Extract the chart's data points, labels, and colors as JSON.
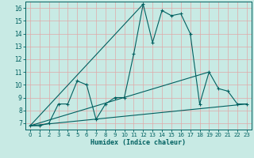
{
  "title": "",
  "xlabel": "Humidex (Indice chaleur)",
  "ylabel": "",
  "bg_color": "#c8eae4",
  "grid_color": "#e0a8a8",
  "line_color": "#006060",
  "xlim": [
    -0.5,
    23.5
  ],
  "ylim": [
    6.5,
    16.5
  ],
  "xticks": [
    0,
    1,
    2,
    3,
    4,
    5,
    6,
    7,
    8,
    9,
    10,
    11,
    12,
    13,
    14,
    15,
    16,
    17,
    18,
    19,
    20,
    21,
    22,
    23
  ],
  "yticks": [
    7,
    8,
    9,
    10,
    11,
    12,
    13,
    14,
    15,
    16
  ],
  "main_x": [
    0,
    1,
    2,
    3,
    4,
    5,
    6,
    7,
    8,
    9,
    10,
    11,
    12,
    13,
    14,
    15,
    16,
    17,
    18,
    19,
    20,
    21,
    22,
    23
  ],
  "main_y": [
    6.8,
    6.8,
    7.0,
    8.5,
    8.5,
    10.3,
    10.0,
    7.3,
    8.5,
    9.0,
    9.0,
    12.4,
    16.3,
    13.3,
    15.8,
    15.4,
    15.55,
    14.0,
    8.5,
    11.0,
    9.7,
    9.5,
    8.5,
    8.5
  ],
  "straight_lines": [
    {
      "x": [
        0,
        23
      ],
      "y": [
        6.8,
        8.5
      ]
    },
    {
      "x": [
        0,
        12
      ],
      "y": [
        6.8,
        16.3
      ]
    },
    {
      "x": [
        0,
        19
      ],
      "y": [
        6.8,
        11.0
      ]
    }
  ]
}
